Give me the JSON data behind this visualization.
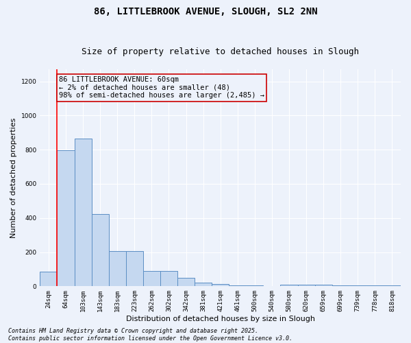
{
  "title_line1": "86, LITTLEBROOK AVENUE, SLOUGH, SL2 2NN",
  "title_line2": "Size of property relative to detached houses in Slough",
  "xlabel": "Distribution of detached houses by size in Slough",
  "ylabel": "Number of detached properties",
  "categories": [
    "24sqm",
    "64sqm",
    "103sqm",
    "143sqm",
    "183sqm",
    "223sqm",
    "262sqm",
    "302sqm",
    "342sqm",
    "381sqm",
    "421sqm",
    "461sqm",
    "500sqm",
    "540sqm",
    "580sqm",
    "620sqm",
    "659sqm",
    "699sqm",
    "739sqm",
    "778sqm",
    "818sqm"
  ],
  "bar_heights": [
    85,
    795,
    865,
    422,
    205,
    205,
    90,
    90,
    50,
    20,
    15,
    5,
    5,
    0,
    10,
    10,
    10,
    5,
    5,
    5,
    5
  ],
  "bar_color": "#c5d8f0",
  "bar_edge_color": "#5b8ec4",
  "background_color": "#edf2fb",
  "grid_color": "#ffffff",
  "annotation_box_color": "#cc0000",
  "annotation_text": "86 LITTLEBROOK AVENUE: 60sqm\n← 2% of detached houses are smaller (48)\n98% of semi-detached houses are larger (2,485) →",
  "red_line_x": 0.5,
  "ylim": [
    0,
    1270
  ],
  "yticks": [
    0,
    200,
    400,
    600,
    800,
    1000,
    1200
  ],
  "footer_line1": "Contains HM Land Registry data © Crown copyright and database right 2025.",
  "footer_line2": "Contains public sector information licensed under the Open Government Licence v3.0.",
  "title_fontsize": 10,
  "subtitle_fontsize": 9,
  "axis_label_fontsize": 8,
  "tick_fontsize": 6.5,
  "annotation_fontsize": 7.5,
  "footer_fontsize": 6
}
